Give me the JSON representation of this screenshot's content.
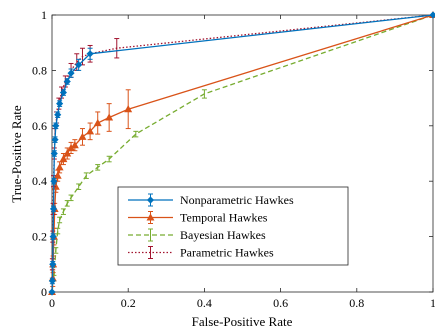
{
  "chart_data": {
    "type": "line",
    "xlabel": "False-Positive Rate",
    "ylabel": "True-Positive Rate",
    "xlim": [
      0,
      1
    ],
    "ylim": [
      0,
      1
    ],
    "x_ticks": [
      "0",
      "0.2",
      "0.4",
      "0.6",
      "0.8",
      "1"
    ],
    "y_ticks": [
      "0",
      "0.2",
      "0.4",
      "0.6",
      "0.8",
      "1"
    ],
    "grid": false,
    "legend_position": "lower-center",
    "series": [
      {
        "name": "Nonparametric Hawkes",
        "color": "#0072BD",
        "line_style": "solid",
        "marker": "diamond",
        "points": [
          {
            "x": 0,
            "y": 0,
            "err": 0
          },
          {
            "x": 0.001,
            "y": 0.04,
            "err": 0.01
          },
          {
            "x": 0.002,
            "y": 0.1,
            "err": 0.01
          },
          {
            "x": 0.003,
            "y": 0.2,
            "err": 0.01
          },
          {
            "x": 0.004,
            "y": 0.3,
            "err": 0.01
          },
          {
            "x": 0.005,
            "y": 0.4,
            "err": 0.01
          },
          {
            "x": 0.006,
            "y": 0.5,
            "err": 0.01
          },
          {
            "x": 0.008,
            "y": 0.55,
            "err": 0.01
          },
          {
            "x": 0.01,
            "y": 0.6,
            "err": 0.01
          },
          {
            "x": 0.015,
            "y": 0.64,
            "err": 0.01
          },
          {
            "x": 0.02,
            "y": 0.68,
            "err": 0.01
          },
          {
            "x": 0.03,
            "y": 0.72,
            "err": 0.01
          },
          {
            "x": 0.04,
            "y": 0.76,
            "err": 0.01
          },
          {
            "x": 0.05,
            "y": 0.79,
            "err": 0.015
          },
          {
            "x": 0.07,
            "y": 0.82,
            "err": 0.02
          },
          {
            "x": 0.1,
            "y": 0.86,
            "err": 0.02
          },
          {
            "x": 1.0,
            "y": 1.0,
            "err": 0
          }
        ]
      },
      {
        "name": "Temporal Hawkes",
        "color": "#D95319",
        "line_style": "solid",
        "marker": "triangle",
        "points": [
          {
            "x": 0,
            "y": 0,
            "err": 0
          },
          {
            "x": 0.002,
            "y": 0.05,
            "err": 0.03
          },
          {
            "x": 0.003,
            "y": 0.1,
            "err": 0.03
          },
          {
            "x": 0.005,
            "y": 0.2,
            "err": 0.03
          },
          {
            "x": 0.007,
            "y": 0.3,
            "err": 0.02
          },
          {
            "x": 0.01,
            "y": 0.38,
            "err": 0.02
          },
          {
            "x": 0.015,
            "y": 0.42,
            "err": 0.02
          },
          {
            "x": 0.02,
            "y": 0.45,
            "err": 0.02
          },
          {
            "x": 0.03,
            "y": 0.48,
            "err": 0.02
          },
          {
            "x": 0.04,
            "y": 0.5,
            "err": 0.02
          },
          {
            "x": 0.05,
            "y": 0.52,
            "err": 0.02
          },
          {
            "x": 0.06,
            "y": 0.53,
            "err": 0.02
          },
          {
            "x": 0.08,
            "y": 0.56,
            "err": 0.03
          },
          {
            "x": 0.1,
            "y": 0.58,
            "err": 0.03
          },
          {
            "x": 0.12,
            "y": 0.61,
            "err": 0.04
          },
          {
            "x": 0.15,
            "y": 0.63,
            "err": 0.05
          },
          {
            "x": 0.2,
            "y": 0.66,
            "err": 0.07
          },
          {
            "x": 1.0,
            "y": 1.0,
            "err": 0
          }
        ]
      },
      {
        "name": "Bayesian Hawkes",
        "color": "#77AC30",
        "line_style": "dashed",
        "marker": "none",
        "points": [
          {
            "x": 0,
            "y": 0,
            "err": 0
          },
          {
            "x": 0.005,
            "y": 0.05,
            "err": 0.01
          },
          {
            "x": 0.01,
            "y": 0.15,
            "err": 0.01
          },
          {
            "x": 0.015,
            "y": 0.22,
            "err": 0.01
          },
          {
            "x": 0.02,
            "y": 0.26,
            "err": 0.01
          },
          {
            "x": 0.03,
            "y": 0.29,
            "err": 0.01
          },
          {
            "x": 0.04,
            "y": 0.32,
            "err": 0.01
          },
          {
            "x": 0.05,
            "y": 0.34,
            "err": 0.01
          },
          {
            "x": 0.07,
            "y": 0.38,
            "err": 0.01
          },
          {
            "x": 0.09,
            "y": 0.42,
            "err": 0.01
          },
          {
            "x": 0.12,
            "y": 0.45,
            "err": 0.01
          },
          {
            "x": 0.15,
            "y": 0.48,
            "err": 0.01
          },
          {
            "x": 0.22,
            "y": 0.57,
            "err": 0.01
          },
          {
            "x": 0.4,
            "y": 0.715,
            "err": 0.015
          },
          {
            "x": 1.0,
            "y": 1.0,
            "err": 0
          }
        ]
      },
      {
        "name": "Parametric Hawkes",
        "color": "#A2142F",
        "line_style": "dotted",
        "marker": "none",
        "points": [
          {
            "x": 0,
            "y": 0,
            "err": 0
          },
          {
            "x": 0.001,
            "y": 0.1,
            "err": 0.02
          },
          {
            "x": 0.002,
            "y": 0.2,
            "err": 0.02
          },
          {
            "x": 0.003,
            "y": 0.3,
            "err": 0.02
          },
          {
            "x": 0.004,
            "y": 0.4,
            "err": 0.02
          },
          {
            "x": 0.006,
            "y": 0.5,
            "err": 0.02
          },
          {
            "x": 0.008,
            "y": 0.57,
            "err": 0.02
          },
          {
            "x": 0.012,
            "y": 0.63,
            "err": 0.02
          },
          {
            "x": 0.018,
            "y": 0.68,
            "err": 0.02
          },
          {
            "x": 0.025,
            "y": 0.72,
            "err": 0.02
          },
          {
            "x": 0.035,
            "y": 0.76,
            "err": 0.02
          },
          {
            "x": 0.05,
            "y": 0.8,
            "err": 0.025
          },
          {
            "x": 0.065,
            "y": 0.83,
            "err": 0.03
          },
          {
            "x": 0.08,
            "y": 0.85,
            "err": 0.03
          },
          {
            "x": 0.1,
            "y": 0.86,
            "err": 0.03
          },
          {
            "x": 0.17,
            "y": 0.88,
            "err": 0.035
          },
          {
            "x": 1.0,
            "y": 1.0,
            "err": 0
          }
        ]
      }
    ]
  }
}
